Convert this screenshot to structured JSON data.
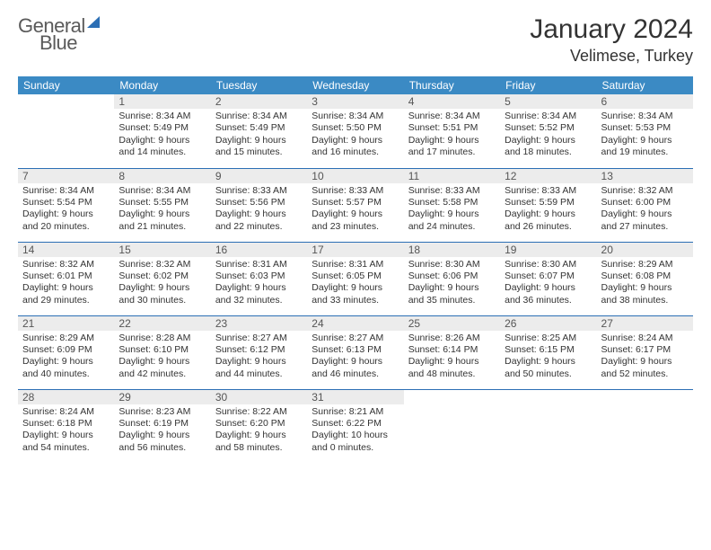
{
  "brand": {
    "word1": "General",
    "word2": "Blue"
  },
  "title": "January 2024",
  "location": "Velimese, Turkey",
  "colors": {
    "header_bg": "#3b8ac4",
    "header_fg": "#ffffff",
    "row_divider": "#2c6fb5",
    "daynum_bg": "#ececec",
    "daynum_fg": "#555555",
    "body_text": "#333333",
    "logo_gray": "#5a5a5a",
    "logo_blue": "#2c6fb5",
    "page_bg": "#ffffff"
  },
  "typography": {
    "title_fontsize": 30,
    "location_fontsize": 18,
    "th_fontsize": 12,
    "daynum_fontsize": 12,
    "cell_fontsize": 10.5
  },
  "weekdays": [
    "Sunday",
    "Monday",
    "Tuesday",
    "Wednesday",
    "Thursday",
    "Friday",
    "Saturday"
  ],
  "weeks": [
    [
      null,
      {
        "n": "1",
        "sr": "Sunrise: 8:34 AM",
        "ss": "Sunset: 5:49 PM",
        "d1": "Daylight: 9 hours",
        "d2": "and 14 minutes."
      },
      {
        "n": "2",
        "sr": "Sunrise: 8:34 AM",
        "ss": "Sunset: 5:49 PM",
        "d1": "Daylight: 9 hours",
        "d2": "and 15 minutes."
      },
      {
        "n": "3",
        "sr": "Sunrise: 8:34 AM",
        "ss": "Sunset: 5:50 PM",
        "d1": "Daylight: 9 hours",
        "d2": "and 16 minutes."
      },
      {
        "n": "4",
        "sr": "Sunrise: 8:34 AM",
        "ss": "Sunset: 5:51 PM",
        "d1": "Daylight: 9 hours",
        "d2": "and 17 minutes."
      },
      {
        "n": "5",
        "sr": "Sunrise: 8:34 AM",
        "ss": "Sunset: 5:52 PM",
        "d1": "Daylight: 9 hours",
        "d2": "and 18 minutes."
      },
      {
        "n": "6",
        "sr": "Sunrise: 8:34 AM",
        "ss": "Sunset: 5:53 PM",
        "d1": "Daylight: 9 hours",
        "d2": "and 19 minutes."
      }
    ],
    [
      {
        "n": "7",
        "sr": "Sunrise: 8:34 AM",
        "ss": "Sunset: 5:54 PM",
        "d1": "Daylight: 9 hours",
        "d2": "and 20 minutes."
      },
      {
        "n": "8",
        "sr": "Sunrise: 8:34 AM",
        "ss": "Sunset: 5:55 PM",
        "d1": "Daylight: 9 hours",
        "d2": "and 21 minutes."
      },
      {
        "n": "9",
        "sr": "Sunrise: 8:33 AM",
        "ss": "Sunset: 5:56 PM",
        "d1": "Daylight: 9 hours",
        "d2": "and 22 minutes."
      },
      {
        "n": "10",
        "sr": "Sunrise: 8:33 AM",
        "ss": "Sunset: 5:57 PM",
        "d1": "Daylight: 9 hours",
        "d2": "and 23 minutes."
      },
      {
        "n": "11",
        "sr": "Sunrise: 8:33 AM",
        "ss": "Sunset: 5:58 PM",
        "d1": "Daylight: 9 hours",
        "d2": "and 24 minutes."
      },
      {
        "n": "12",
        "sr": "Sunrise: 8:33 AM",
        "ss": "Sunset: 5:59 PM",
        "d1": "Daylight: 9 hours",
        "d2": "and 26 minutes."
      },
      {
        "n": "13",
        "sr": "Sunrise: 8:32 AM",
        "ss": "Sunset: 6:00 PM",
        "d1": "Daylight: 9 hours",
        "d2": "and 27 minutes."
      }
    ],
    [
      {
        "n": "14",
        "sr": "Sunrise: 8:32 AM",
        "ss": "Sunset: 6:01 PM",
        "d1": "Daylight: 9 hours",
        "d2": "and 29 minutes."
      },
      {
        "n": "15",
        "sr": "Sunrise: 8:32 AM",
        "ss": "Sunset: 6:02 PM",
        "d1": "Daylight: 9 hours",
        "d2": "and 30 minutes."
      },
      {
        "n": "16",
        "sr": "Sunrise: 8:31 AM",
        "ss": "Sunset: 6:03 PM",
        "d1": "Daylight: 9 hours",
        "d2": "and 32 minutes."
      },
      {
        "n": "17",
        "sr": "Sunrise: 8:31 AM",
        "ss": "Sunset: 6:05 PM",
        "d1": "Daylight: 9 hours",
        "d2": "and 33 minutes."
      },
      {
        "n": "18",
        "sr": "Sunrise: 8:30 AM",
        "ss": "Sunset: 6:06 PM",
        "d1": "Daylight: 9 hours",
        "d2": "and 35 minutes."
      },
      {
        "n": "19",
        "sr": "Sunrise: 8:30 AM",
        "ss": "Sunset: 6:07 PM",
        "d1": "Daylight: 9 hours",
        "d2": "and 36 minutes."
      },
      {
        "n": "20",
        "sr": "Sunrise: 8:29 AM",
        "ss": "Sunset: 6:08 PM",
        "d1": "Daylight: 9 hours",
        "d2": "and 38 minutes."
      }
    ],
    [
      {
        "n": "21",
        "sr": "Sunrise: 8:29 AM",
        "ss": "Sunset: 6:09 PM",
        "d1": "Daylight: 9 hours",
        "d2": "and 40 minutes."
      },
      {
        "n": "22",
        "sr": "Sunrise: 8:28 AM",
        "ss": "Sunset: 6:10 PM",
        "d1": "Daylight: 9 hours",
        "d2": "and 42 minutes."
      },
      {
        "n": "23",
        "sr": "Sunrise: 8:27 AM",
        "ss": "Sunset: 6:12 PM",
        "d1": "Daylight: 9 hours",
        "d2": "and 44 minutes."
      },
      {
        "n": "24",
        "sr": "Sunrise: 8:27 AM",
        "ss": "Sunset: 6:13 PM",
        "d1": "Daylight: 9 hours",
        "d2": "and 46 minutes."
      },
      {
        "n": "25",
        "sr": "Sunrise: 8:26 AM",
        "ss": "Sunset: 6:14 PM",
        "d1": "Daylight: 9 hours",
        "d2": "and 48 minutes."
      },
      {
        "n": "26",
        "sr": "Sunrise: 8:25 AM",
        "ss": "Sunset: 6:15 PM",
        "d1": "Daylight: 9 hours",
        "d2": "and 50 minutes."
      },
      {
        "n": "27",
        "sr": "Sunrise: 8:24 AM",
        "ss": "Sunset: 6:17 PM",
        "d1": "Daylight: 9 hours",
        "d2": "and 52 minutes."
      }
    ],
    [
      {
        "n": "28",
        "sr": "Sunrise: 8:24 AM",
        "ss": "Sunset: 6:18 PM",
        "d1": "Daylight: 9 hours",
        "d2": "and 54 minutes."
      },
      {
        "n": "29",
        "sr": "Sunrise: 8:23 AM",
        "ss": "Sunset: 6:19 PM",
        "d1": "Daylight: 9 hours",
        "d2": "and 56 minutes."
      },
      {
        "n": "30",
        "sr": "Sunrise: 8:22 AM",
        "ss": "Sunset: 6:20 PM",
        "d1": "Daylight: 9 hours",
        "d2": "and 58 minutes."
      },
      {
        "n": "31",
        "sr": "Sunrise: 8:21 AM",
        "ss": "Sunset: 6:22 PM",
        "d1": "Daylight: 10 hours",
        "d2": "and 0 minutes."
      },
      null,
      null,
      null
    ]
  ]
}
